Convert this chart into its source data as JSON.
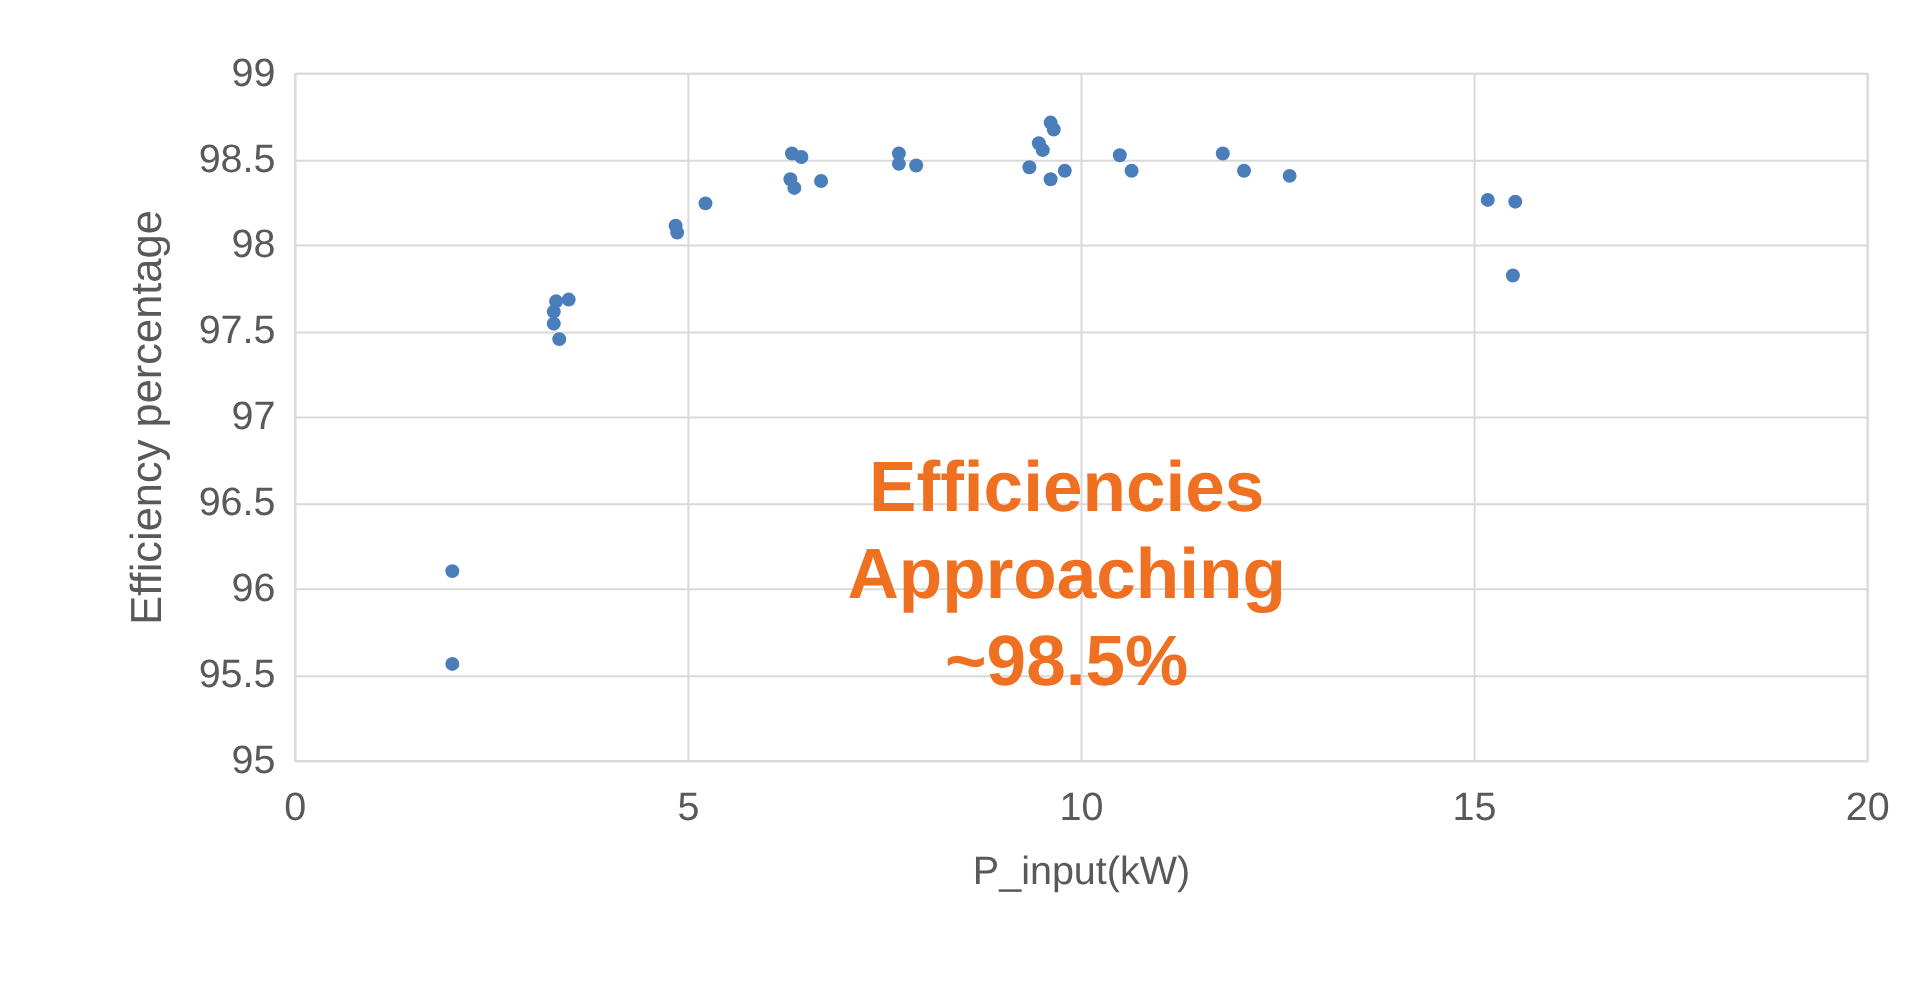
{
  "chart_data": {
    "type": "scatter",
    "xlabel": "P_input(kW)",
    "ylabel": "Efficiency percentage",
    "x": [
      2.01,
      2.01,
      3.33,
      3.3,
      3.3,
      3.37,
      3.49,
      4.85,
      4.87,
      5.23,
      6.33,
      6.45,
      6.31,
      6.36,
      6.7,
      7.69,
      7.69,
      7.91,
      9.35,
      9.47,
      9.52,
      9.62,
      9.66,
      9.62,
      9.8,
      10.5,
      10.65,
      11.81,
      12.08,
      12.66,
      15.18,
      15.53,
      15.5
    ],
    "series": [
      {
        "color": "#4a7ebb",
        "values": [
          96.1,
          95.56,
          97.67,
          97.61,
          97.54,
          97.45,
          97.68,
          98.11,
          98.07,
          98.24,
          98.53,
          98.51,
          98.38,
          98.33,
          98.37,
          98.53,
          98.47,
          98.46,
          98.45,
          98.59,
          98.55,
          98.71,
          98.67,
          98.38,
          98.43,
          98.52,
          98.43,
          98.53,
          98.43,
          98.4,
          98.26,
          98.25,
          97.82
        ]
      }
    ],
    "xlim": [
      0,
      20
    ],
    "xticks": [
      0,
      5,
      10,
      15,
      20
    ],
    "ylim": [
      95,
      99
    ],
    "yticks": [
      95,
      95.5,
      96,
      96.5,
      97,
      97.5,
      98,
      98.5,
      99
    ],
    "grid": true,
    "marker": "circle",
    "annotations": [
      "Efficiencies\nApproaching\n~98.5%"
    ]
  }
}
